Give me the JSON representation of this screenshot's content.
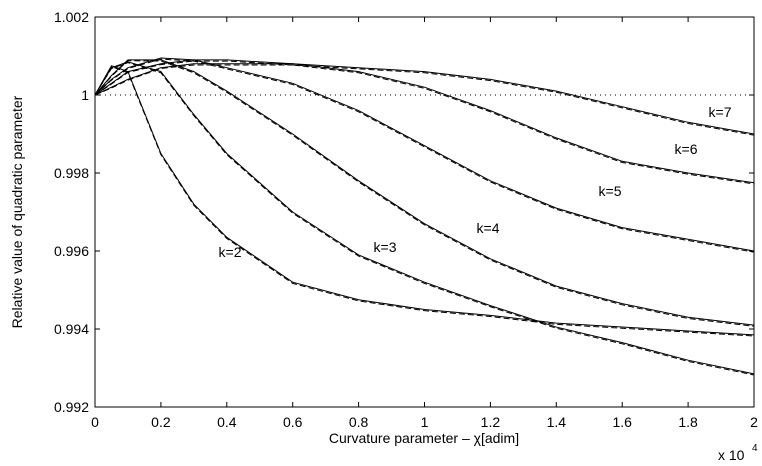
{
  "chart_data": {
    "type": "line",
    "xlabel": "Curvature parameter – χ[adim]",
    "ylabel": "Relative value of quadratic parameter",
    "x_multiplier": "x 10",
    "x_multiplier_exp": "4",
    "x": [
      0,
      0.05,
      0.1,
      0.2,
      0.3,
      0.4,
      0.6,
      0.8,
      1.0,
      1.2,
      1.4,
      1.6,
      1.8,
      2.0
    ],
    "xlim": [
      0,
      2
    ],
    "xticks": [
      0,
      0.2,
      0.4,
      0.6,
      0.8,
      1,
      1.2,
      1.4,
      1.6,
      1.8,
      2
    ],
    "ylim": [
      0.992,
      1.002
    ],
    "yticks": [
      0.992,
      0.994,
      0.996,
      0.998,
      1,
      1.002
    ],
    "reference": 1,
    "color": "#000000",
    "series": [
      {
        "name": "k=2",
        "values": [
          1,
          1.00075,
          1.0006,
          0.9985,
          0.9972,
          0.99635,
          0.9952,
          0.99475,
          0.9945,
          0.99435,
          0.99415,
          0.99405,
          0.99395,
          0.99385
        ],
        "approx_values": [
          1,
          1.00073,
          1.00057,
          0.99847,
          0.99717,
          0.99632,
          0.99517,
          0.99472,
          0.99447,
          0.99432,
          0.99412,
          0.99402,
          0.99392,
          0.99382
        ]
      },
      {
        "name": "k=3",
        "values": [
          1,
          1.0007,
          1.00085,
          1.0006,
          0.9995,
          0.9985,
          0.997,
          0.9959,
          0.9952,
          0.9946,
          0.99405,
          0.99365,
          0.9932,
          0.99285
        ],
        "approx_values": [
          1,
          1.00068,
          1.00083,
          1.00057,
          0.99947,
          0.99847,
          0.99697,
          0.99587,
          0.99517,
          0.99457,
          0.99402,
          0.99362,
          0.99317,
          0.99282
        ]
      },
      {
        "name": "k=4",
        "values": [
          1,
          1.0005,
          1.0009,
          1.0009,
          1.0006,
          1.0001,
          0.999,
          0.9978,
          0.9967,
          0.9958,
          0.9951,
          0.99465,
          0.9943,
          0.9941
        ],
        "approx_values": [
          1,
          1.00048,
          1.00088,
          1.00087,
          1.00057,
          1.00007,
          0.99897,
          0.99777,
          0.99667,
          0.99577,
          0.99507,
          0.99462,
          0.99427,
          0.99407
        ]
      },
      {
        "name": "k=5",
        "values": [
          1,
          1.0004,
          1.0007,
          1.00095,
          1.0009,
          1.0007,
          1.0003,
          0.9996,
          0.9987,
          0.9978,
          0.9971,
          0.9966,
          0.9963,
          0.996
        ],
        "approx_values": [
          1,
          1.00038,
          1.00068,
          1.00092,
          1.00087,
          1.00067,
          1.00027,
          0.99957,
          0.99867,
          0.99777,
          0.99707,
          0.99657,
          0.99627,
          0.99597
        ]
      },
      {
        "name": "k=6",
        "values": [
          1,
          1.0003,
          1.0006,
          1.0008,
          1.0009,
          1.0009,
          1.0008,
          1.0006,
          1.0002,
          0.9996,
          0.9989,
          0.9983,
          0.998,
          0.99775
        ],
        "approx_values": [
          1,
          1.00028,
          1.00058,
          1.00078,
          1.00087,
          1.00087,
          1.00077,
          1.00057,
          1.00017,
          0.99957,
          0.99887,
          0.99827,
          0.99797,
          0.99772
        ]
      },
      {
        "name": "k=7",
        "values": [
          1,
          1.0002,
          1.0004,
          1.0007,
          1.0008,
          1.0008,
          1.0008,
          1.0007,
          1.0006,
          1.0004,
          1.0001,
          0.9997,
          0.9993,
          0.999
        ],
        "approx_values": [
          1,
          1.00018,
          1.00038,
          1.00068,
          1.00077,
          1.00077,
          1.00077,
          1.00067,
          1.00057,
          1.00037,
          1.00007,
          0.99967,
          0.99927,
          0.99897
        ]
      }
    ]
  }
}
